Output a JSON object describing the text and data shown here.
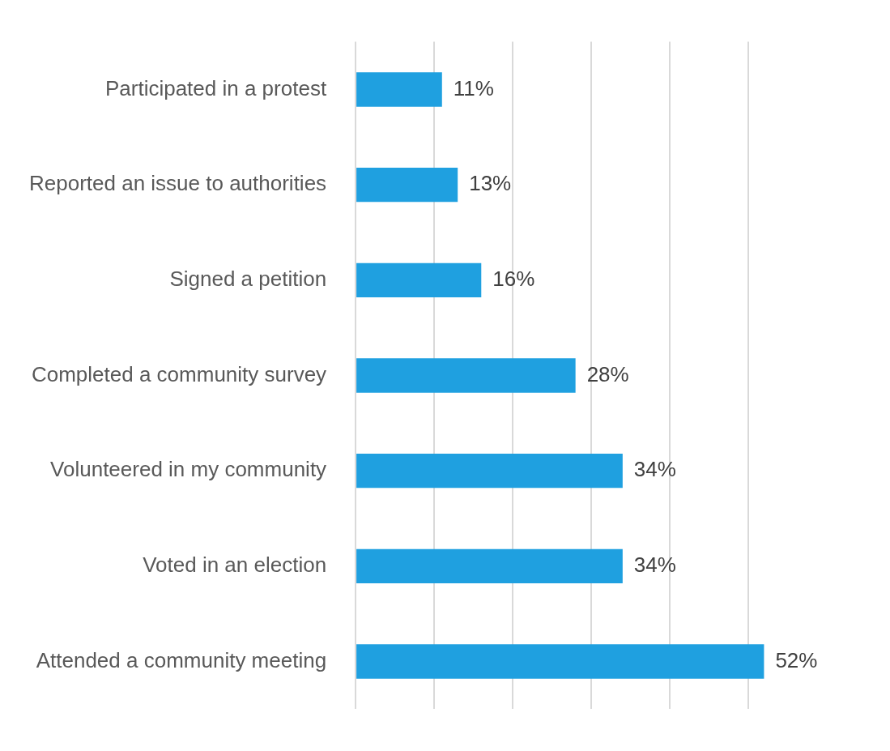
{
  "chart_data": {
    "type": "bar",
    "orientation": "horizontal",
    "categories": [
      "Participated in a protest",
      "Reported an issue to authorities",
      "Signed a petition",
      "Completed a community survey",
      "Volunteered in my community",
      "Voted in an election",
      "Attended a community meeting"
    ],
    "values": [
      11,
      13,
      16,
      28,
      34,
      34,
      52
    ],
    "value_labels": [
      "11%",
      "13%",
      "16%",
      "28%",
      "34%",
      "34%",
      "52%"
    ],
    "color": "#1fa0e0",
    "xticks": [
      {
        "value": 0,
        "label": null
      },
      {
        "value": 10,
        "label": null
      },
      {
        "value": 20,
        "label": null
      },
      {
        "value": 30,
        "label": null
      },
      {
        "value": 40,
        "label": null
      },
      {
        "value": 50,
        "label": null
      }
    ],
    "tick_labels": "y",
    "grid": "x",
    "legend": false
  }
}
